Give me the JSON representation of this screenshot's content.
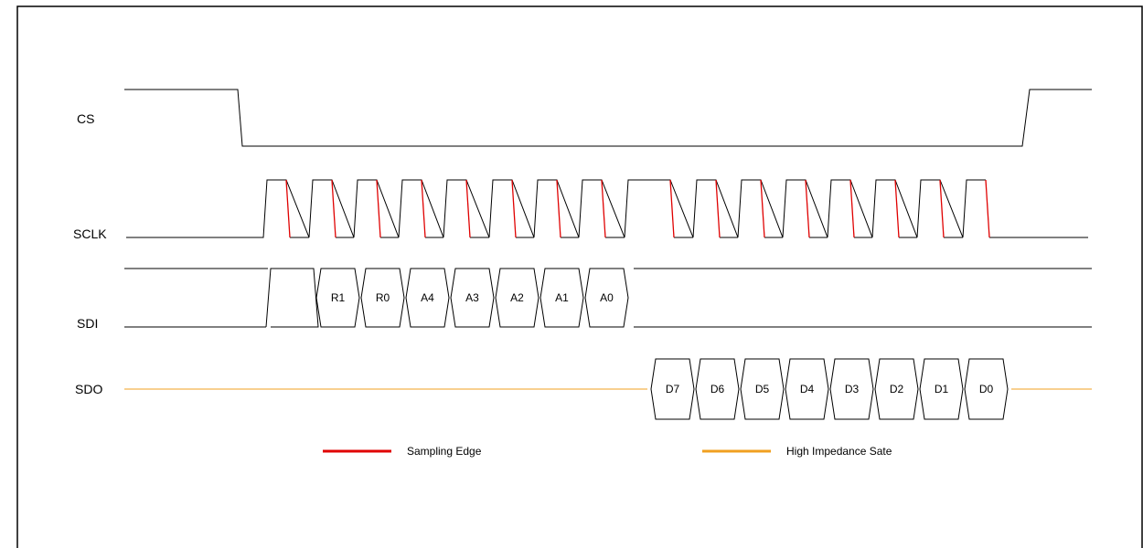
{
  "signals": {
    "cs": "CS",
    "sclk": "SCLK",
    "sdi": "SDI",
    "sdo": "SDO"
  },
  "sdi_bits": [
    "R1",
    "R0",
    "A4",
    "A3",
    "A2",
    "A1",
    "A0"
  ],
  "sdo_bits": [
    "D7",
    "D6",
    "D5",
    "D4",
    "D3",
    "D2",
    "D1",
    "D0"
  ],
  "legend": {
    "sampling_edge": "Sampling Edge",
    "high_impedance": "High Impedance Sate"
  },
  "colors": {
    "line": "#000000",
    "sampling_edge": "#e00000",
    "high_impedance": "#f0a020"
  }
}
